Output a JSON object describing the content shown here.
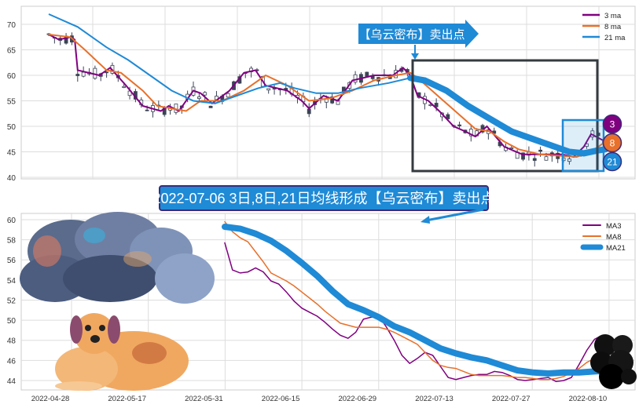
{
  "chart_data": [
    {
      "type": "line",
      "title": "",
      "note": "candlestick price chart with moving averages",
      "ylim": [
        40,
        72
      ],
      "yticks": [
        40,
        45,
        50,
        55,
        60,
        65,
        70
      ],
      "xunit": "trading day index",
      "grid": true,
      "legend": "top-right",
      "series": [
        {
          "name": "3 ma",
          "color": "#800080",
          "points": [
            [
              0,
              68
            ],
            [
              1.4,
              67
            ],
            [
              3,
              67.5
            ],
            [
              3.6,
              67
            ],
            [
              4,
              61
            ],
            [
              7,
              60
            ],
            [
              8.5,
              61.5
            ],
            [
              10.7,
              58
            ],
            [
              13,
              54
            ],
            [
              15.5,
              53
            ],
            [
              16.6,
              54
            ],
            [
              18,
              53
            ],
            [
              20,
              57
            ],
            [
              21,
              56.5
            ],
            [
              22.6,
              54.5
            ],
            [
              25,
              57
            ],
            [
              27,
              60.5
            ],
            [
              28.6,
              61
            ],
            [
              30,
              58
            ],
            [
              33,
              57
            ],
            [
              35,
              55
            ],
            [
              36,
              53.5
            ],
            [
              38,
              56
            ],
            [
              40,
              55
            ],
            [
              42,
              59
            ],
            [
              45,
              60
            ],
            [
              47.6,
              60
            ],
            [
              49,
              61.5
            ],
            [
              50,
              60
            ],
            [
              51,
              56
            ],
            [
              52.5,
              55
            ],
            [
              54,
              53
            ],
            [
              56,
              50
            ],
            [
              57.6,
              49
            ],
            [
              59,
              48
            ],
            [
              60.6,
              50
            ],
            [
              63,
              46
            ],
            [
              65.5,
              44.5
            ],
            [
              68,
              44.5
            ],
            [
              71,
              44.5
            ],
            [
              72.6,
              44
            ],
            [
              74,
              46
            ],
            [
              75,
              48.5
            ],
            [
              77,
              47
            ]
          ]
        },
        {
          "name": "8 ma",
          "color": "#e8702a",
          "points": [
            [
              0,
              68
            ],
            [
              3,
              67.5
            ],
            [
              5,
              65
            ],
            [
              8,
              61
            ],
            [
              10,
              60.5
            ],
            [
              13,
              57
            ],
            [
              15,
              54
            ],
            [
              17,
              53.5
            ],
            [
              19,
              53
            ],
            [
              21,
              55
            ],
            [
              24,
              55
            ],
            [
              27,
              57
            ],
            [
              30,
              60
            ],
            [
              33,
              58
            ],
            [
              36,
              55
            ],
            [
              39,
              55.5
            ],
            [
              42,
              57
            ],
            [
              45,
              59
            ],
            [
              48,
              60
            ],
            [
              50,
              60.5
            ],
            [
              51,
              59.5
            ],
            [
              53,
              57
            ],
            [
              55,
              54.5
            ],
            [
              57,
              52
            ],
            [
              59,
              49.5
            ],
            [
              61,
              49
            ],
            [
              63,
              47
            ],
            [
              65,
              45.5
            ],
            [
              68,
              44.5
            ],
            [
              71,
              44.2
            ],
            [
              73,
              44
            ],
            [
              75,
              45
            ],
            [
              77,
              47
            ]
          ]
        },
        {
          "name": "21 ma",
          "color": "#1f8ad6",
          "points": [
            [
              0,
              72
            ],
            [
              4,
              69.5
            ],
            [
              8,
              65.5
            ],
            [
              11,
              63
            ],
            [
              14,
              60
            ],
            [
              17,
              57
            ],
            [
              20,
              55
            ],
            [
              23,
              54.5
            ],
            [
              26,
              56
            ],
            [
              29,
              57.5
            ],
            [
              32,
              58.5
            ],
            [
              34,
              57.5
            ],
            [
              37,
              56.5
            ],
            [
              40,
              56.5
            ],
            [
              43,
              57.5
            ],
            [
              47,
              58.5
            ],
            [
              50,
              59.5
            ],
            [
              52,
              59
            ],
            [
              55,
              57
            ],
            [
              58,
              54
            ],
            [
              61,
              51.5
            ],
            [
              64,
              49
            ],
            [
              67,
              47.5
            ],
            [
              70,
              46
            ],
            [
              72,
              45
            ],
            [
              74,
              44.7
            ],
            [
              76,
              45.3
            ],
            [
              77,
              45.5
            ]
          ]
        }
      ],
      "annotation": "【乌云密布】卖出点",
      "badges": [
        "3",
        "8",
        "21"
      ]
    },
    {
      "type": "line",
      "title": "2022-07-06 3日,8日,21日均线形成【乌云密布】卖出点",
      "ylim": [
        43,
        60.3
      ],
      "yticks": [
        44,
        46,
        48,
        50,
        52,
        54,
        56,
        58,
        60
      ],
      "xticks": [
        "2022-04-28",
        "2022-05-17",
        "2022-05-31",
        "2022-06-15",
        "2022-06-29",
        "2022-07-13",
        "2022-07-27",
        "2022-08-10"
      ],
      "grid": true,
      "legend": "top-right",
      "series": [
        {
          "name": "MA3",
          "color": "#800080",
          "points": [
            [
              0,
              57.7
            ],
            [
              1,
              55
            ],
            [
              2,
              54.7
            ],
            [
              3,
              54.8
            ],
            [
              4,
              55.2
            ],
            [
              5,
              54.8
            ],
            [
              6,
              53.9
            ],
            [
              7,
              53.6
            ],
            [
              8,
              52.8
            ],
            [
              9,
              51.9
            ],
            [
              10,
              51.2
            ],
            [
              11,
              50.8
            ],
            [
              12,
              50.4
            ],
            [
              13,
              49.8
            ],
            [
              14,
              49.1
            ],
            [
              15,
              48.5
            ],
            [
              16,
              48.2
            ],
            [
              17,
              48.8
            ],
            [
              18,
              50.1
            ],
            [
              19,
              50.3
            ],
            [
              20,
              50.4
            ],
            [
              21,
              49.3
            ],
            [
              22,
              48
            ],
            [
              23,
              46.5
            ],
            [
              24,
              45.7
            ],
            [
              25,
              46.2
            ],
            [
              26,
              46.8
            ],
            [
              27,
              46.5
            ],
            [
              28,
              45.4
            ],
            [
              29,
              44.3
            ],
            [
              30,
              44.1
            ],
            [
              31,
              44.3
            ],
            [
              32,
              44.5
            ],
            [
              33,
              44.6
            ],
            [
              34,
              44.6
            ],
            [
              35,
              44.9
            ],
            [
              36,
              44.8
            ],
            [
              37,
              44.5
            ],
            [
              38,
              44.1
            ],
            [
              39,
              44.0
            ],
            [
              40,
              44.1
            ],
            [
              41,
              44.2
            ],
            [
              42,
              44.3
            ],
            [
              43,
              43.9
            ],
            [
              44,
              44.0
            ],
            [
              45,
              44.3
            ],
            [
              46,
              45.6
            ],
            [
              47,
              47
            ],
            [
              48,
              48.1
            ],
            [
              49,
              48.5
            ]
          ]
        },
        {
          "name": "MA8",
          "color": "#e8702a",
          "points": [
            [
              0,
              59.8
            ],
            [
              1,
              58.8
            ],
            [
              2,
              58.2
            ],
            [
              3,
              57.8
            ],
            [
              4,
              56.8
            ],
            [
              5,
              55.8
            ],
            [
              6,
              54.7
            ],
            [
              7,
              54.3
            ],
            [
              8,
              53.9
            ],
            [
              9,
              53.4
            ],
            [
              10,
              52.8
            ],
            [
              11,
              52.2
            ],
            [
              12,
              51.6
            ],
            [
              13,
              50.9
            ],
            [
              14,
              50.3
            ],
            [
              15,
              49.7
            ],
            [
              16,
              49.5
            ],
            [
              17,
              49.3
            ],
            [
              18,
              49.3
            ],
            [
              19,
              49.3
            ],
            [
              20,
              49.3
            ],
            [
              21,
              49.1
            ],
            [
              22,
              48.8
            ],
            [
              23,
              48.4
            ],
            [
              24,
              48.0
            ],
            [
              25,
              47.6
            ],
            [
              26,
              46.8
            ],
            [
              27,
              46
            ],
            [
              28,
              45.5
            ],
            [
              29,
              45.3
            ],
            [
              30,
              45.2
            ],
            [
              31,
              44.9
            ],
            [
              32,
              44.6
            ],
            [
              33,
              44.5
            ],
            [
              34,
              44.5
            ],
            [
              35,
              44.5
            ],
            [
              36,
              44.5
            ],
            [
              37,
              44.4
            ],
            [
              38,
              44.3
            ],
            [
              39,
              44.3
            ],
            [
              40,
              44.2
            ],
            [
              41,
              44.1
            ],
            [
              42,
              44.1
            ],
            [
              43,
              44.2
            ],
            [
              44,
              44.4
            ],
            [
              45,
              44.8
            ],
            [
              46,
              45.2
            ],
            [
              47,
              45.8
            ],
            [
              48,
              46.2
            ],
            [
              49,
              46.5
            ]
          ]
        },
        {
          "name": "MA21",
          "color": "#1f8ad6",
          "points": [
            [
              0,
              59.3
            ],
            [
              2,
              59.1
            ],
            [
              4,
              58.6
            ],
            [
              6,
              57.9
            ],
            [
              8,
              56.9
            ],
            [
              10,
              55.7
            ],
            [
              12,
              54.4
            ],
            [
              14,
              52.9
            ],
            [
              16,
              51.6
            ],
            [
              18,
              51.0
            ],
            [
              20,
              50.3
            ],
            [
              22,
              49.4
            ],
            [
              24,
              48.8
            ],
            [
              26,
              48.0
            ],
            [
              28,
              47.2
            ],
            [
              30,
              46.7
            ],
            [
              32,
              46.3
            ],
            [
              34,
              46.0
            ],
            [
              36,
              45.5
            ],
            [
              38,
              45.0
            ],
            [
              40,
              44.8
            ],
            [
              42,
              44.7
            ],
            [
              44,
              44.8
            ],
            [
              46,
              44.8
            ],
            [
              48,
              44.9
            ],
            [
              50,
              45.0
            ]
          ]
        }
      ]
    }
  ]
}
